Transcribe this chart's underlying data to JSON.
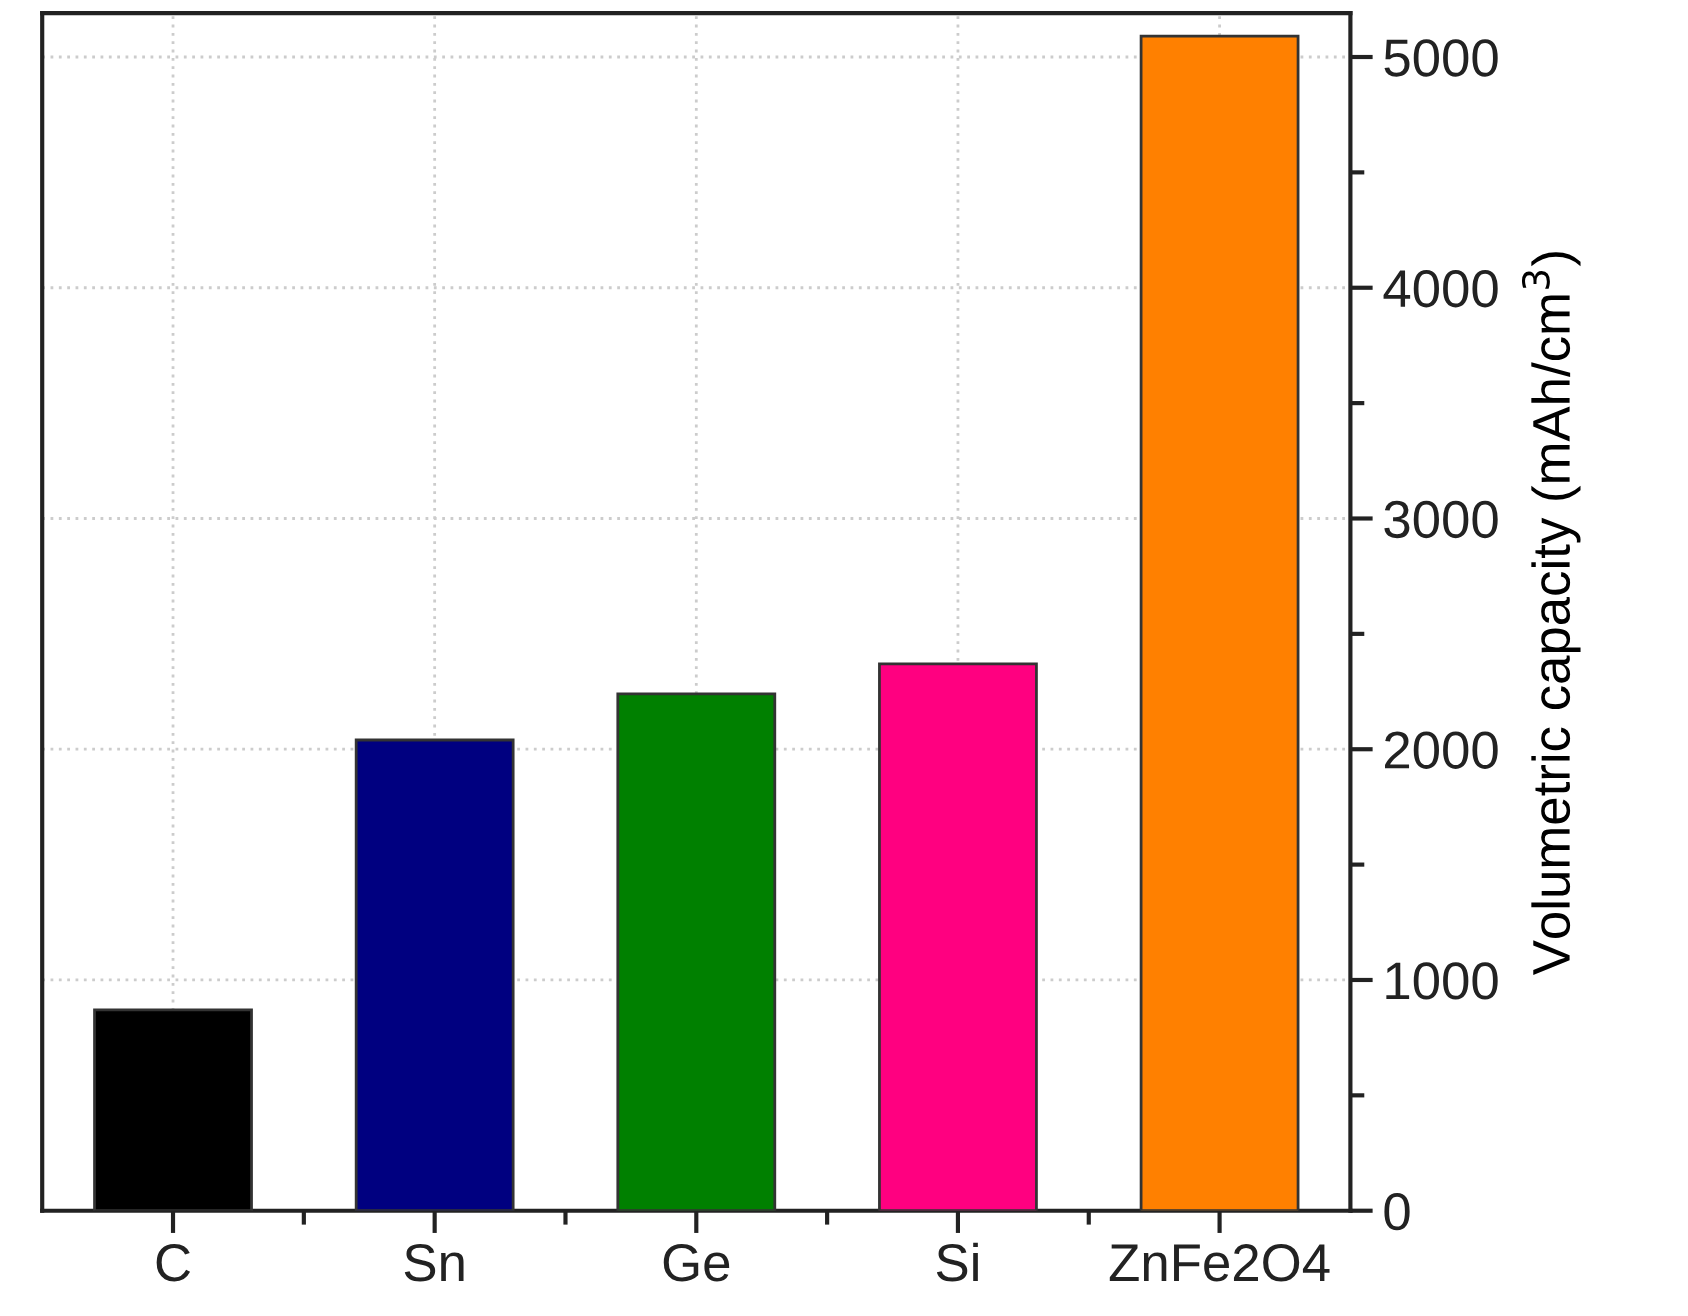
{
  "chart_data": {
    "type": "bar",
    "ylabel": "Volumetric capacity (mAh/cm$^{3}$)",
    "categories": [
      "C",
      "Sn",
      "Ge",
      "Si",
      "ZnFe2O4"
    ],
    "values": [
      870,
      2040,
      2240,
      2370,
      5090
    ],
    "colors": [
      "#000000",
      "#000080",
      "#008000",
      "#ff0080",
      "#ff8000"
    ],
    "ylim": [
      0,
      5190
    ],
    "yticks": [
      0,
      {
        "value": 500,
        "label": null
      },
      1000,
      {
        "value": 1500,
        "label": null
      },
      2000,
      {
        "value": 2500,
        "label": null
      },
      3000,
      {
        "value": 3500,
        "label": null
      },
      4000,
      {
        "value": 4500,
        "label": null
      },
      5000
    ],
    "grid": true
  }
}
